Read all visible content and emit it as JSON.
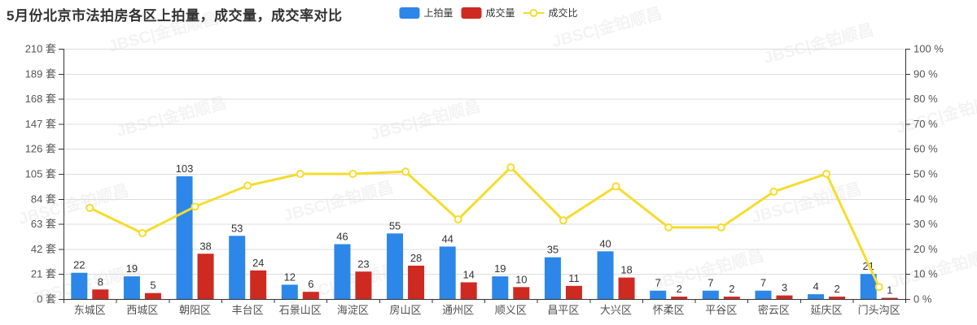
{
  "title": "5月份北京市法拍房各区上拍量，成交量，成交率对比",
  "watermark": {
    "text": "JBSC|金铂顺昌"
  },
  "legend": [
    {
      "label": "上拍量",
      "type": "bar",
      "color": "#2C87E8"
    },
    {
      "label": "成交量",
      "type": "bar",
      "color": "#CE2A22"
    },
    {
      "label": "成交比",
      "type": "line",
      "color": "#F6DC2D"
    }
  ],
  "chart_data": {
    "type": "bar+line",
    "title": "5月份北京市法拍房各区上拍量，成交量，成交率对比",
    "categories": [
      "东城区",
      "西城区",
      "朝阳区",
      "丰台区",
      "石景山区",
      "海淀区",
      "房山区",
      "通州区",
      "顺义区",
      "昌平区",
      "大兴区",
      "怀柔区",
      "平谷区",
      "密云区",
      "延庆区",
      "门头沟区"
    ],
    "series": [
      {
        "name": "上拍量",
        "type": "bar",
        "axis": "left",
        "color": "#2C87E8",
        "values": [
          22,
          19,
          103,
          53,
          12,
          46,
          55,
          44,
          19,
          35,
          40,
          7,
          7,
          7,
          4,
          21
        ]
      },
      {
        "name": "成交量",
        "type": "bar",
        "axis": "left",
        "color": "#CE2A22",
        "values": [
          8,
          5,
          38,
          24,
          6,
          23,
          28,
          14,
          10,
          11,
          18,
          2,
          2,
          3,
          2,
          1
        ]
      },
      {
        "name": "成交比",
        "type": "line",
        "axis": "right",
        "color": "#F6DC2D",
        "values": [
          36.4,
          26.3,
          36.9,
          45.3,
          50.0,
          50.0,
          50.9,
          31.8,
          52.6,
          31.4,
          45.0,
          28.6,
          28.6,
          42.9,
          50.0,
          4.8
        ]
      }
    ],
    "y_left": {
      "min": 0,
      "max": 210,
      "step": 21,
      "unit": "套",
      "tick_labels": [
        "0 套",
        "21 套",
        "42 套",
        "63 套",
        "84 套",
        "105 套",
        "126 套",
        "147 套",
        "168 套",
        "189 套",
        "210 套"
      ]
    },
    "y_right": {
      "min": 0,
      "max": 100,
      "step": 10,
      "unit": "%",
      "tick_labels": [
        "0 %",
        "10 %",
        "20 %",
        "30 %",
        "40 %",
        "50 %",
        "60 %",
        "70 %",
        "80 %",
        "90 %",
        "100 %"
      ]
    },
    "grid": true,
    "legend_position": "top",
    "colors": {
      "grid_line": "#DDDDE2",
      "axis_line": "#333333",
      "tick_label": "#555555",
      "x_label": "#515151",
      "value_label": "#333333",
      "marker_fill": "#ffffff"
    }
  }
}
